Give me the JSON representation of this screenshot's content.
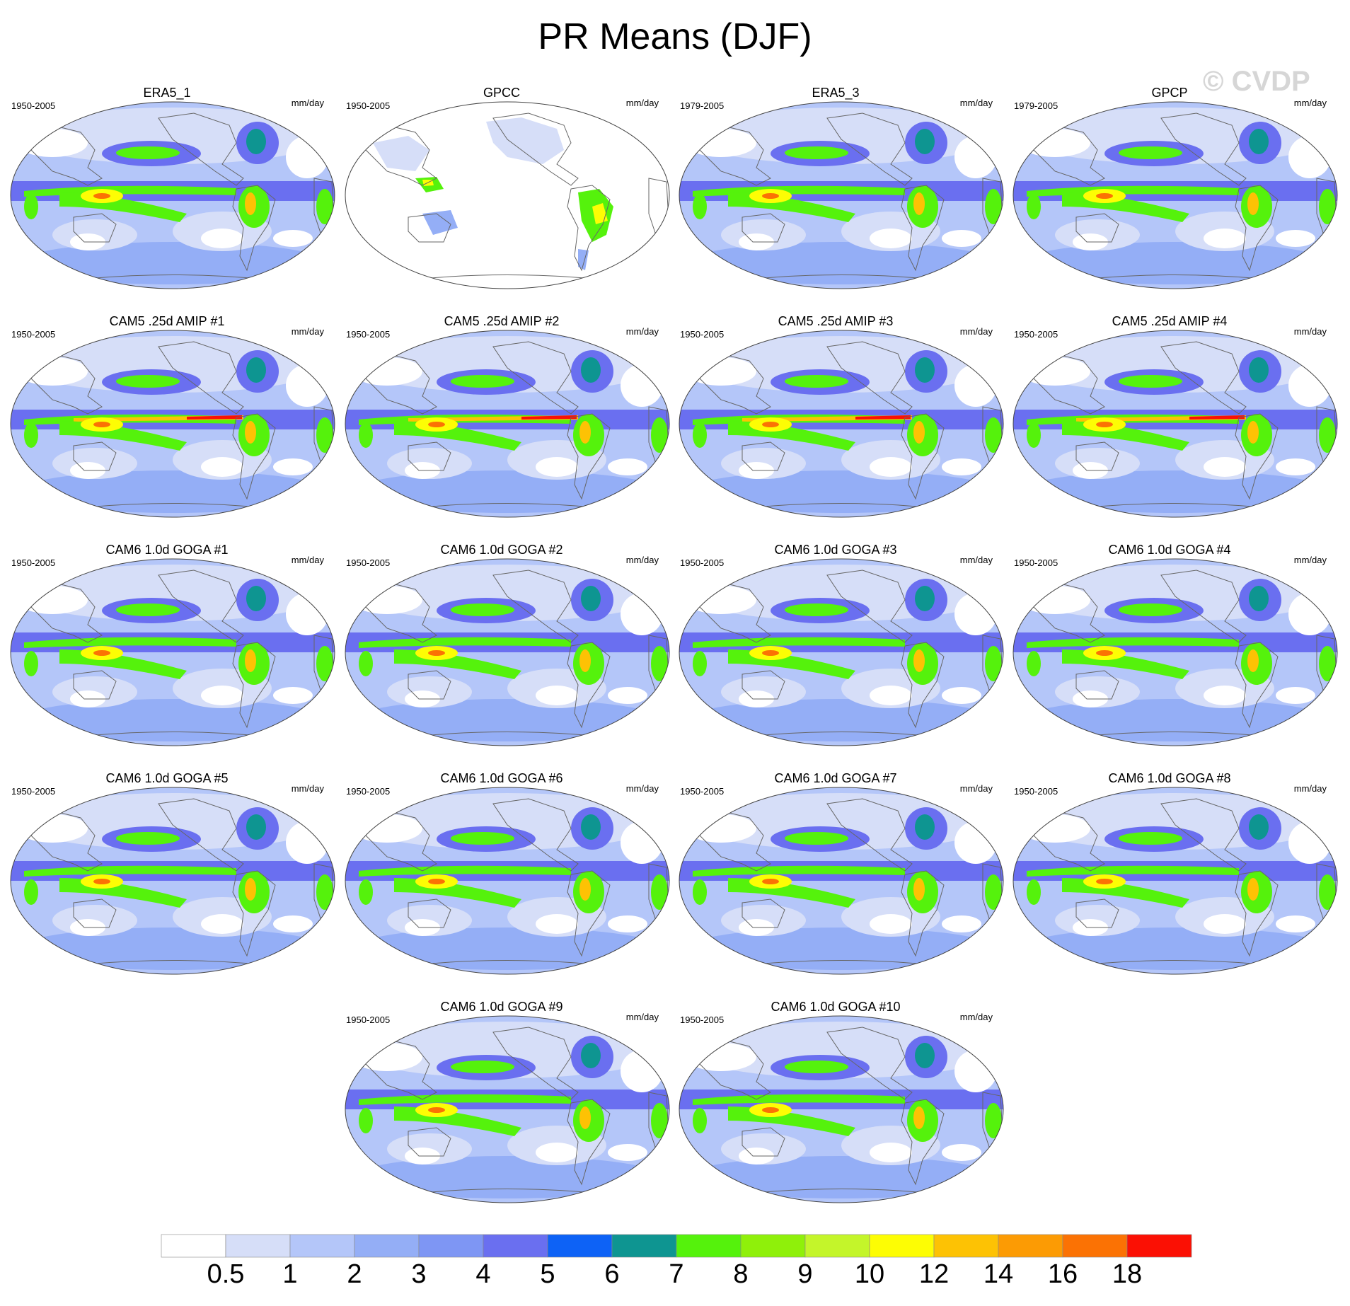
{
  "title": "PR Means (DJF)",
  "watermark": "© CVDP",
  "units": "mm/day",
  "panels": [
    {
      "title": "ERA5_1",
      "period": "1950-2005",
      "style": "obs"
    },
    {
      "title": "GPCC",
      "period": "1950-2005",
      "style": "land"
    },
    {
      "title": "ERA5_3",
      "period": "1979-2005",
      "style": "obs"
    },
    {
      "title": "GPCP",
      "period": "1979-2005",
      "style": "gpcp"
    },
    {
      "title": "CAM5 .25d AMIP #1",
      "period": "1950-2005",
      "style": "amip"
    },
    {
      "title": "CAM5 .25d AMIP #2",
      "period": "1950-2005",
      "style": "amip"
    },
    {
      "title": "CAM5 .25d AMIP #3",
      "period": "1950-2005",
      "style": "amip"
    },
    {
      "title": "CAM5 .25d AMIP #4",
      "period": "1950-2005",
      "style": "amip"
    },
    {
      "title": "CAM6 1.0d GOGA #1",
      "period": "1950-2005",
      "style": "goga"
    },
    {
      "title": "CAM6 1.0d GOGA #2",
      "period": "1950-2005",
      "style": "goga"
    },
    {
      "title": "CAM6 1.0d GOGA #3",
      "period": "1950-2005",
      "style": "goga"
    },
    {
      "title": "CAM6 1.0d GOGA #4",
      "period": "1950-2005",
      "style": "goga"
    },
    {
      "title": "CAM6 1.0d GOGA #5",
      "period": "1950-2005",
      "style": "goga"
    },
    {
      "title": "CAM6 1.0d GOGA #6",
      "period": "1950-2005",
      "style": "goga"
    },
    {
      "title": "CAM6 1.0d GOGA #7",
      "period": "1950-2005",
      "style": "goga"
    },
    {
      "title": "CAM6 1.0d GOGA #8",
      "period": "1950-2005",
      "style": "goga"
    },
    {
      "title": "CAM6 1.0d GOGA #9",
      "period": "1950-2005",
      "style": "goga"
    },
    {
      "title": "CAM6 1.0d GOGA #10",
      "period": "1950-2005",
      "style": "goga"
    }
  ],
  "colorbar": {
    "labels": [
      "0.5",
      "1",
      "2",
      "3",
      "4",
      "5",
      "6",
      "7",
      "8",
      "9",
      "10",
      "12",
      "14",
      "16",
      "18"
    ],
    "colors": [
      "#ffffff",
      "#d6def8",
      "#b4c6f9",
      "#94aef6",
      "#7e96f4",
      "#6a6ff0",
      "#0d62f6",
      "#0e9591",
      "#55f20c",
      "#8ff00a",
      "#c4f52a",
      "#fdfd04",
      "#fdc204",
      "#fc9b04",
      "#fb7204",
      "#fb1004"
    ]
  }
}
